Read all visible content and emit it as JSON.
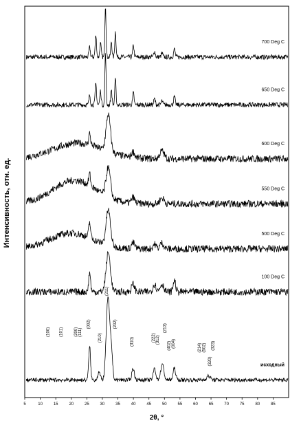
{
  "chart_data": {
    "type": "line",
    "xlabel": "2θ, °",
    "ylabel": "Интенсивность, отн. ед.",
    "xlim": [
      5,
      90
    ],
    "xticks": [
      "5",
      "10",
      "15",
      "20",
      "25",
      "30",
      "35",
      "40",
      "45",
      "50",
      "55",
      "60",
      "65",
      "70",
      "75",
      "80",
      "85"
    ],
    "series": [
      {
        "name": "700 Deg C",
        "baseline": 0.87,
        "noise": 0.012,
        "hump": [],
        "peaks": [
          [
            25.9,
            0.025,
            0.22
          ],
          [
            27.9,
            0.055,
            0.22
          ],
          [
            29.4,
            0.035,
            0.22
          ],
          [
            31.0,
            0.135,
            0.18
          ],
          [
            32.9,
            0.04,
            0.2
          ],
          [
            34.2,
            0.065,
            0.2
          ],
          [
            40.0,
            0.03,
            0.22
          ],
          [
            46.8,
            0.015,
            0.25
          ],
          [
            49.2,
            0.01,
            0.25
          ],
          [
            53.2,
            0.02,
            0.25
          ]
        ]
      },
      {
        "name": "650 Deg C",
        "baseline": 0.748,
        "noise": 0.012,
        "hump": [],
        "peaks": [
          [
            25.9,
            0.025,
            0.22
          ],
          [
            27.9,
            0.055,
            0.22
          ],
          [
            29.4,
            0.035,
            0.22
          ],
          [
            31.0,
            0.135,
            0.18
          ],
          [
            32.9,
            0.04,
            0.2
          ],
          [
            34.2,
            0.065,
            0.2
          ],
          [
            40.0,
            0.03,
            0.22
          ],
          [
            46.8,
            0.015,
            0.25
          ],
          [
            49.2,
            0.01,
            0.25
          ],
          [
            53.2,
            0.02,
            0.25
          ]
        ]
      },
      {
        "name": "600 Deg C",
        "baseline": 0.61,
        "noise": 0.018,
        "hump": [
          22,
          0.04,
          8
        ],
        "peaks": [
          [
            25.9,
            0.03,
            0.3
          ],
          [
            31.9,
            0.095,
            0.7
          ],
          [
            39.9,
            0.015,
            0.5
          ],
          [
            49.2,
            0.02,
            0.7
          ]
        ]
      },
      {
        "name": "550 Deg C",
        "baseline": 0.495,
        "noise": 0.018,
        "hump": [
          21,
          0.06,
          7
        ],
        "peaks": [
          [
            25.9,
            0.03,
            0.3
          ],
          [
            31.9,
            0.075,
            0.7
          ],
          [
            39.9,
            0.015,
            0.5
          ],
          [
            49.2,
            0.015,
            0.7
          ]
        ]
      },
      {
        "name": "500 Deg  C",
        "baseline": 0.38,
        "noise": 0.018,
        "hump": [
          20,
          0.04,
          7
        ],
        "peaks": [
          [
            25.9,
            0.04,
            0.3
          ],
          [
            31.9,
            0.09,
            0.7
          ],
          [
            39.9,
            0.015,
            0.5
          ],
          [
            46.8,
            0.012,
            0.5
          ],
          [
            49.2,
            0.015,
            0.6
          ]
        ]
      },
      {
        "name": "100 Deg C",
        "baseline": 0.27,
        "noise": 0.018,
        "hump": [],
        "peaks": [
          [
            25.9,
            0.05,
            0.3
          ],
          [
            31.9,
            0.1,
            0.7
          ],
          [
            39.9,
            0.02,
            0.5
          ],
          [
            46.8,
            0.02,
            0.5
          ],
          [
            49.2,
            0.02,
            0.6
          ],
          [
            53.2,
            0.03,
            0.4
          ]
        ]
      },
      {
        "name": "исходный",
        "baseline": 0.045,
        "noise": 0.01,
        "hump": [],
        "peaks": [
          [
            25.9,
            0.085,
            0.3
          ],
          [
            28.9,
            0.02,
            0.4
          ],
          [
            31.8,
            0.21,
            0.55
          ],
          [
            32.9,
            0.07,
            0.4
          ],
          [
            39.9,
            0.03,
            0.4
          ],
          [
            46.8,
            0.03,
            0.4
          ],
          [
            49.3,
            0.04,
            0.5
          ],
          [
            53.2,
            0.03,
            0.4
          ],
          [
            64.2,
            0.01,
            0.6
          ]
        ]
      }
    ],
    "peak_labels": [
      "(100)",
      "(101)",
      "(200)",
      "(111)",
      "(002)",
      "(210)",
      "(211)",
      "(202)",
      "(310)",
      "(222)",
      "(312)",
      "(213)",
      "(402)",
      "(004)",
      "(214)",
      "(502)",
      "(320)",
      "(323)"
    ],
    "peak_label_x": [
      12.9,
      17.1,
      21.8,
      23.2,
      25.9,
      29.6,
      31.8,
      34.4,
      39.9,
      46.8,
      48.2,
      50.5,
      51.8,
      53.2,
      61.7,
      63.1,
      65.0,
      66.0
    ],
    "peak_label_y": [
      0.155,
      0.155,
      0.155,
      0.155,
      0.175,
      0.14,
      0.26,
      0.175,
      0.13,
      0.14,
      0.135,
      0.165,
      0.12,
      0.125,
      0.115,
      0.115,
      0.08,
      0.12
    ]
  }
}
